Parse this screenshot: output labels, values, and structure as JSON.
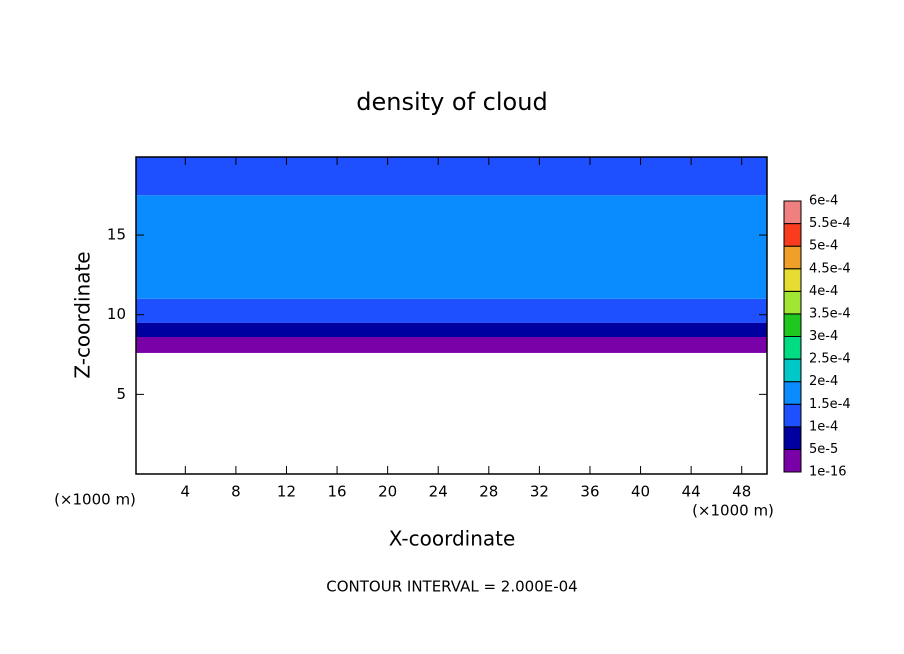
{
  "chart_data": {
    "type": "contour",
    "title": "density of cloud",
    "xlabel": "X-coordinate",
    "ylabel": "Z-coordinate",
    "x_unit": "(×1000 m)",
    "y_unit": "(×1000 m)",
    "footer": "CONTOUR INTERVAL = 2.000E-04",
    "xlim": [
      0.1,
      50
    ],
    "ylim": [
      0,
      19.9
    ],
    "xticks": [
      4,
      8,
      12,
      16,
      20,
      24,
      28,
      32,
      36,
      40,
      44,
      48
    ],
    "yticks": [
      5,
      10,
      15
    ],
    "layers": [
      {
        "z": [
          7.6,
          8.6
        ],
        "value": 3e-05
      },
      {
        "z": [
          8.6,
          9.5
        ],
        "value": 7e-05
      },
      {
        "z": [
          9.5,
          11
        ],
        "value": 0.00012
      },
      {
        "z": [
          11,
          14
        ],
        "value": 0.00016
      },
      {
        "z": [
          14,
          17.5
        ],
        "value": 0.00018
      },
      {
        "z": [
          17.5,
          19.9
        ],
        "value": 0.00013
      }
    ],
    "colorbar": {
      "levels": [
        {
          "value": 1e-16,
          "label": "1e-16"
        },
        {
          "value": 5e-05,
          "label": "5e-5"
        },
        {
          "value": 0.0001,
          "label": "1e-4"
        },
        {
          "value": 0.00015,
          "label": "1.5e-4"
        },
        {
          "value": 0.0002,
          "label": "2e-4"
        },
        {
          "value": 0.00025,
          "label": "2.5e-4"
        },
        {
          "value": 0.0003,
          "label": "3e-4"
        },
        {
          "value": 0.00035,
          "label": "3.5e-4"
        },
        {
          "value": 0.0004,
          "label": "4e-4"
        },
        {
          "value": 0.00045,
          "label": "4.5e-4"
        },
        {
          "value": 0.0005,
          "label": "5e-4"
        },
        {
          "value": 0.00055,
          "label": "5.5e-4"
        },
        {
          "value": 0.0006,
          "label": "6e-4"
        }
      ],
      "colors": [
        "#7a00a8",
        "#0000a0",
        "#1e50ff",
        "#0a8cff",
        "#00c8c8",
        "#00dc82",
        "#1ec81e",
        "#a0e632",
        "#e6dc32",
        "#f0a028",
        "#fa3c1e",
        "#f08080"
      ]
    }
  }
}
